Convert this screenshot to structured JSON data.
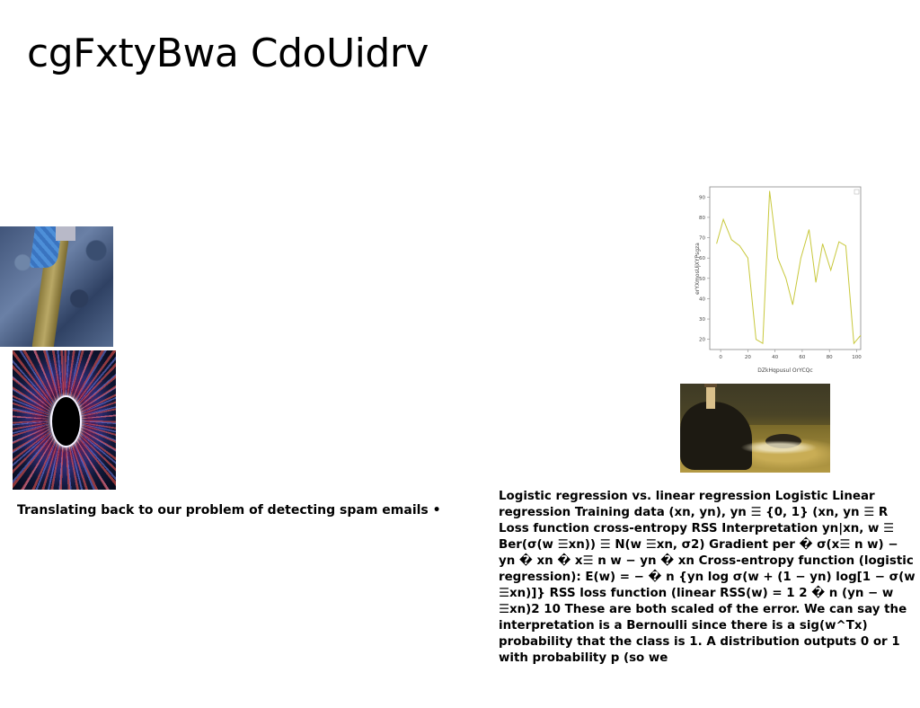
{
  "slide": {
    "title": "cgFxtyBwa CdoUidrv",
    "caption_left": "Translating back to our problem of detecting spam emails •",
    "body_text": "Logistic regression vs. linear regression Logistic Linear regression Training data (xn, yn), yn ☰ {0, 1} (xn, yn ☰ R Loss function cross-entropy RSS Interpretation yn|xn, w ☰ Ber(σ(w ☰xn)) ☰ N(w ☰xn, σ2) Gradient per � σ(x☰ n w) − yn � xn � x☰ n w − yn � xn Cross-entropy function (logistic regression): E(w) = − � n {yn log σ(w + (1 − yn) log[1 − σ(w ☰xn)]} RSS loss function (linear RSS(w) = 1 2 � n (yn − w ☰xn)2 10 These are both scaled of the error. We can say the interpretation is a Bernoulli since there is a sig(w^Tx) probability that the class is 1. A distribution outputs 0 or 1 with probability p (so we"
  },
  "images": {
    "forest": "forest-photo",
    "tunnel": "light-tunnel-photo",
    "lighthouse": "lighthouse-rock-photo"
  },
  "chart_data": {
    "type": "line",
    "xlabel": "DZkHqpusul OrYCQc",
    "ylabel": "erYXmosUjXYPsgza",
    "xlim": [
      -8,
      103
    ],
    "ylim": [
      15,
      95
    ],
    "x_ticks": [
      0,
      20,
      40,
      60,
      80,
      100
    ],
    "y_ticks": [
      20,
      30,
      40,
      50,
      60,
      70,
      80,
      90
    ],
    "color": "#c8c83c",
    "grid": false,
    "series": [
      {
        "x": [
          -3,
          2,
          8,
          14,
          20,
          26,
          31,
          36,
          42,
          48,
          53,
          59,
          65,
          70,
          75,
          81,
          87,
          92,
          98,
          103
        ],
        "y": [
          67,
          79,
          69,
          66,
          60,
          20,
          18,
          93,
          60,
          50,
          37,
          60,
          74,
          48,
          67,
          54,
          68,
          66,
          18,
          22
        ]
      }
    ]
  }
}
